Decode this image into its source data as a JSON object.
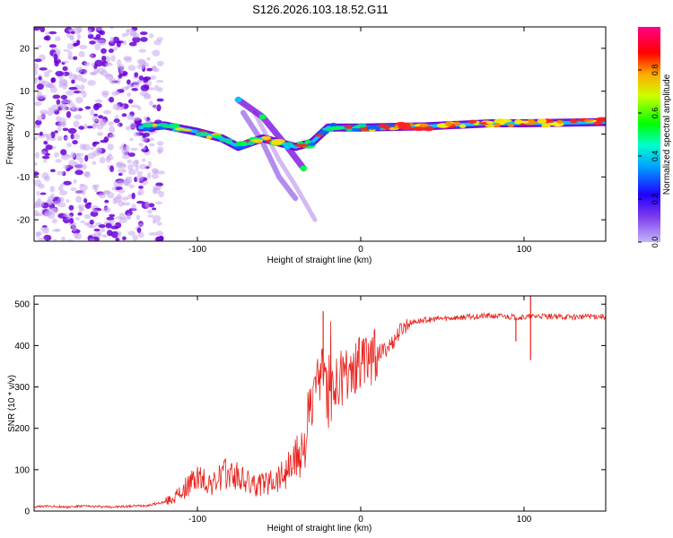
{
  "title": "S126.2026.103.18.52.G11",
  "colors": {
    "spectrogram_low": "#c9a8f0",
    "spectrogram_mid": "#6a00d8",
    "snr_line": "#e8221c",
    "colorbar_stops": [
      "#a78bfa",
      "#5b00ff",
      "#0000ff",
      "#00d0ff",
      "#00ff44",
      "#ffff00",
      "#ff9900",
      "#ff0000",
      "#ff00aa"
    ]
  },
  "chart_data": [
    {
      "type": "heatmap",
      "name": "spectrogram",
      "xlabel": "Height of straight line (km)",
      "ylabel": "Frequency (Hz)",
      "xlim": [
        -200,
        150
      ],
      "ylim": [
        -25,
        25
      ],
      "xticks": [
        -100,
        0,
        100
      ],
      "yticks": [
        -20,
        -10,
        0,
        10,
        20
      ],
      "colorbar": {
        "label": "Normalized spectral amplitude",
        "range": [
          0,
          1
        ],
        "ticks": [
          0.0,
          0.2,
          0.4,
          0.6,
          0.8
        ]
      },
      "features": [
        {
          "description": "noise",
          "x": [
            -200,
            -122
          ],
          "freq": [
            -25,
            25
          ],
          "amplitude": 0.1
        },
        {
          "description": "main signal",
          "points": [
            [
              -135,
              1.5
            ],
            [
              -120,
              2
            ],
            [
              -100,
              0.5
            ],
            [
              -85,
              -1
            ],
            [
              -75,
              -3
            ],
            [
              -60,
              -1
            ],
            [
              -40,
              -3
            ],
            [
              -30,
              -2
            ],
            [
              -20,
              1.5
            ],
            [
              0,
              1.5
            ],
            [
              40,
              1.8
            ],
            [
              80,
              2.5
            ],
            [
              100,
              2.5
            ],
            [
              150,
              2.8
            ]
          ],
          "amplitude": 0.6
        },
        {
          "description": "branch 1",
          "points": [
            [
              -75,
              8
            ],
            [
              -60,
              4
            ],
            [
              -45,
              -3
            ],
            [
              -35,
              -8
            ]
          ],
          "amplitude": 0.5
        },
        {
          "description": "branch 2",
          "points": [
            [
              -72,
              5
            ],
            [
              -60,
              -2
            ],
            [
              -50,
              -10
            ],
            [
              -40,
              -15
            ]
          ],
          "amplitude": 0.3
        },
        {
          "description": "branch 3",
          "points": [
            [
              -65,
              5
            ],
            [
              -50,
              -6
            ],
            [
              -40,
              -12
            ],
            [
              -28,
              -20
            ]
          ],
          "amplitude": 0.15
        }
      ]
    },
    {
      "type": "line",
      "name": "snr",
      "xlabel": "Height of straight line (km)",
      "ylabel": "SNR (10 * v/v)",
      "xlim": [
        -200,
        150
      ],
      "ylim": [
        0,
        520
      ],
      "xticks": [
        -100,
        0,
        100
      ],
      "yticks": [
        0,
        100,
        200,
        300,
        400,
        500
      ],
      "series": [
        {
          "name": "SNR",
          "x": [
            -200,
            -190,
            -180,
            -170,
            -160,
            -150,
            -140,
            -130,
            -120,
            -115,
            -110,
            -105,
            -100,
            -95,
            -90,
            -85,
            -80,
            -75,
            -70,
            -65,
            -60,
            -55,
            -50,
            -45,
            -40,
            -35,
            -30,
            -25,
            -22,
            -20,
            -18,
            -15,
            -12,
            -10,
            -5,
            0,
            5,
            10,
            15,
            20,
            25,
            30,
            40,
            50,
            60,
            70,
            80,
            90,
            100,
            110,
            120,
            130,
            140,
            150
          ],
          "values": [
            10,
            12,
            10,
            12,
            11,
            10,
            12,
            14,
            22,
            30,
            45,
            65,
            80,
            70,
            65,
            85,
            90,
            80,
            70,
            60,
            65,
            75,
            85,
            100,
            125,
            160,
            240,
            320,
            330,
            260,
            280,
            300,
            320,
            330,
            350,
            365,
            370,
            380,
            390,
            410,
            440,
            455,
            462,
            465,
            468,
            470,
            472,
            470,
            468,
            472,
            470,
            469,
            471,
            470
          ]
        }
      ],
      "annotations": [
        {
          "x": -23,
          "peak": 483
        },
        {
          "x": 104,
          "peak": 522
        },
        {
          "x": 104,
          "dip": 365
        },
        {
          "x": 95,
          "dip": 410
        }
      ]
    }
  ]
}
